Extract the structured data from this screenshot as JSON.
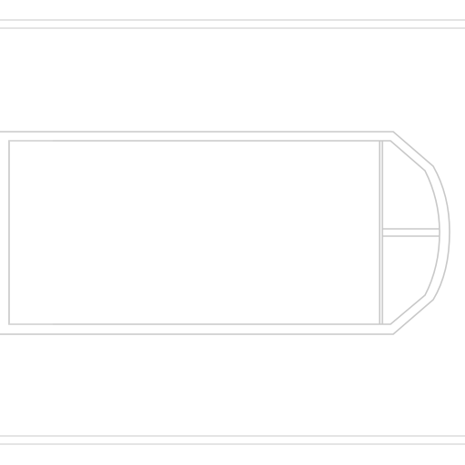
{
  "drawing": {
    "type": "floor-plan-outline",
    "labels": [],
    "colors": {
      "background": "#ffffff",
      "line": "#c8c8c8"
    }
  }
}
